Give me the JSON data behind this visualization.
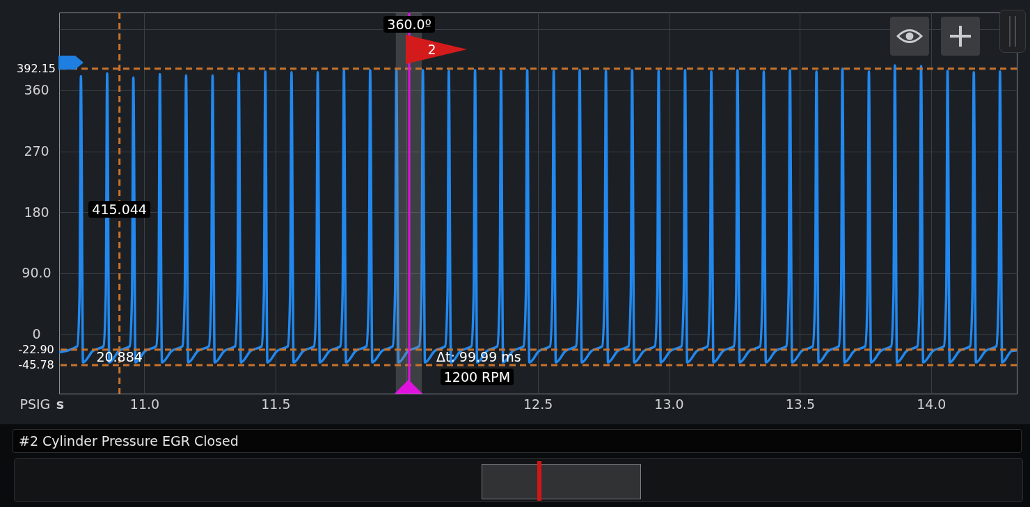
{
  "chart_data": {
    "type": "line",
    "title": "#2 Cylinder Pressure EGR Closed",
    "xlabel": "s",
    "ylabel": "PSIG",
    "color": "#2288ee",
    "x": [
      10.675,
      10.744,
      10.753,
      10.758,
      10.766,
      10.803,
      10.844,
      10.853,
      10.858,
      10.866,
      10.903,
      10.944,
      10.953,
      10.958,
      10.966,
      11.003,
      11.045,
      11.054,
      11.059,
      11.067,
      11.104,
      11.145,
      11.154,
      11.159,
      11.167,
      11.204,
      11.246,
      11.255,
      11.26,
      11.268,
      11.305,
      11.346,
      11.355,
      11.36,
      11.368,
      11.405,
      11.447,
      11.456,
      11.461,
      11.469,
      11.506,
      11.547,
      11.556,
      11.561,
      11.569,
      11.606,
      11.647,
      11.656,
      11.661,
      11.669,
      11.706,
      11.747,
      11.756,
      11.761,
      11.769,
      11.806,
      11.847,
      11.856,
      11.861,
      11.869,
      11.906,
      11.947,
      11.956,
      11.961,
      11.969,
      12.006,
      12.048,
      12.057,
      12.062,
      12.07,
      12.107,
      12.147,
      12.156,
      12.161,
      12.169,
      12.206,
      12.247,
      12.256,
      12.261,
      12.269,
      12.306,
      12.346,
      12.355,
      12.36,
      12.368,
      12.405,
      12.446,
      12.455,
      12.46,
      12.468,
      12.505,
      12.547,
      12.556,
      12.561,
      12.569,
      12.606,
      12.646,
      12.655,
      12.66,
      12.668,
      12.705,
      12.746,
      12.755,
      12.76,
      12.768,
      12.805,
      12.846,
      12.855,
      12.86,
      12.868,
      12.905,
      12.947,
      12.956,
      12.961,
      12.969,
      13.006,
      13.048,
      13.057,
      13.062,
      13.07,
      13.107,
      13.148,
      13.157,
      13.162,
      13.17,
      13.207,
      13.248,
      13.257,
      13.262,
      13.27,
      13.307,
      13.348,
      13.357,
      13.362,
      13.37,
      13.407,
      13.448,
      13.457,
      13.462,
      13.47,
      13.507,
      13.549,
      13.558,
      13.563,
      13.571,
      13.608,
      13.648,
      13.657,
      13.662,
      13.67,
      13.707,
      13.749,
      13.758,
      13.763,
      13.771,
      13.808,
      13.848,
      13.857,
      13.862,
      13.87,
      13.907,
      13.948,
      13.957,
      13.962,
      13.97,
      14.007,
      14.049,
      14.058,
      14.063,
      14.071,
      14.108,
      14.149,
      14.158,
      14.163,
      14.171,
      14.208,
      14.249,
      14.258,
      14.263,
      14.271,
      14.308,
      14.327
    ],
    "values": [
      -27,
      -18,
      60,
      381,
      -42,
      -25,
      -18,
      60,
      385,
      -42,
      -25,
      -18,
      60,
      379,
      -42,
      -25,
      -18,
      60,
      384,
      -42,
      -25,
      -18,
      60,
      382,
      -42,
      -25,
      -18,
      60,
      382,
      -42,
      -25,
      -18,
      60,
      386,
      -42,
      -25,
      -18,
      60,
      388,
      -42,
      -25,
      -18,
      60,
      387,
      -42,
      -25,
      -18,
      60,
      387,
      -42,
      -25,
      -18,
      60,
      390,
      -42,
      -25,
      -18,
      60,
      390,
      -42,
      -25,
      -18,
      60,
      391,
      -42,
      -25,
      -18,
      60,
      390,
      -42,
      -25,
      -18,
      60,
      389,
      -42,
      -25,
      -18,
      60,
      390,
      -42,
      -25,
      -18,
      60,
      389,
      -42,
      -25,
      -18,
      60,
      390,
      -42,
      -25,
      -18,
      60,
      389,
      -42,
      -25,
      -18,
      60,
      390,
      -42,
      -25,
      -18,
      60,
      389,
      -42,
      -25,
      -18,
      60,
      390,
      -42,
      -25,
      -18,
      60,
      389,
      -42,
      -25,
      -18,
      60,
      390,
      -42,
      -25,
      -18,
      60,
      388,
      -42,
      -25,
      -18,
      60,
      390,
      -42,
      -25,
      -18,
      60,
      388,
      -42,
      -25,
      -18,
      60,
      390,
      -42,
      -25,
      -18,
      60,
      388,
      -42,
      -25,
      -18,
      60,
      392,
      -42,
      -25,
      -18,
      60,
      388,
      -42,
      -25,
      -18,
      60,
      397,
      -42,
      -25,
      -18,
      60,
      396,
      -42,
      -25,
      -18,
      60,
      389,
      -42,
      -25,
      -18,
      60,
      387,
      -42,
      -25,
      -18,
      60,
      388,
      -42,
      -25,
      -24
    ],
    "xlim": [
      10.675,
      14.327
    ],
    "xticks": [
      {
        "value": 11,
        "label": "11.0"
      },
      11.5,
      {
        "value": 12,
        "label": null
      },
      12.5,
      {
        "value": 13,
        "label": "13.0"
      },
      13.5,
      {
        "value": 14,
        "label": "14.0"
      }
    ],
    "ylim": [
      -88,
      475
    ],
    "yticks": [
      0,
      {
        "value": 90,
        "label": "90.0"
      },
      180,
      270,
      360,
      {
        "value": 450,
        "label": null
      }
    ],
    "grid": true,
    "ref_lines": [
      {
        "axis": "y",
        "value": 392.15,
        "label": "392.15",
        "color": "#c8732c",
        "line_style": "dashed"
      },
      {
        "axis": "y",
        "value": -22.9,
        "label": "-22.90",
        "color": "#c8732c",
        "line_style": "dashed"
      },
      {
        "axis": "y",
        "value": -45.78,
        "label": "-45.78",
        "color": "#c8732c",
        "line_style": "dashed"
      },
      {
        "axis": "x",
        "value": 10.905,
        "color": "#c8732c",
        "line_style": "dashed"
      },
      {
        "axis": "x",
        "value": 12.01,
        "color": "#e012e0"
      }
    ],
    "bands": [
      {
        "axis": "x",
        "from": 11.959,
        "to": 12.058,
        "color": "#8a8a8a"
      }
    ],
    "annotations": [
      {
        "text": "415.044",
        "x": 10.905,
        "y": 184
      },
      {
        "text": "20.884",
        "x": 10.905,
        "y": -34
      },
      {
        "text": "360.0º",
        "x": 12.01,
        "y": 458
      },
      {
        "text": "Δt: 99.99 ms",
        "x": 12.275,
        "y": -34
      },
      "2",
      "1200 RPM"
    ]
  }
}
